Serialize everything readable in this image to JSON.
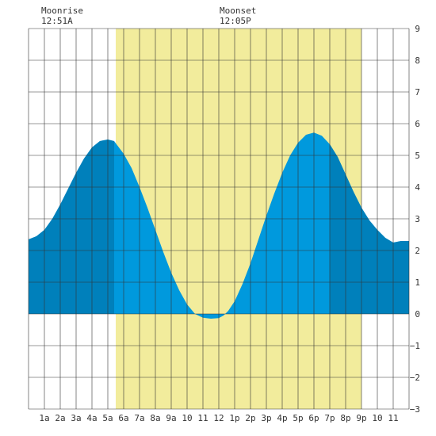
{
  "moon": {
    "rise_label": "Moonrise",
    "rise_time": "12:51A",
    "set_label": "Moonset",
    "set_time": "12:05P"
  },
  "chart_data": {
    "type": "area",
    "title": "",
    "xlabel": "",
    "ylabel": "",
    "x_range_hours": [
      0,
      24
    ],
    "ylim": [
      -3,
      9
    ],
    "y_ticks": [
      -3,
      -2,
      -1,
      0,
      1,
      2,
      3,
      4,
      5,
      6,
      7,
      8,
      9
    ],
    "x_tick_labels": [
      "1a",
      "2a",
      "3a",
      "4a",
      "5a",
      "6a",
      "7a",
      "8a",
      "9a",
      "10",
      "11",
      "12",
      "1p",
      "2p",
      "3p",
      "4p",
      "5p",
      "6p",
      "7p",
      "8p",
      "9p",
      "10",
      "11"
    ],
    "grid": true,
    "daylight_hours": [
      5.5,
      21.0
    ],
    "night_regions_hours": [
      [
        0,
        5.4
      ],
      [
        19.0,
        24
      ]
    ],
    "colors": {
      "daylight": "#f2ec9c",
      "tide_day": "#0099dd",
      "tide_night": "#0080bb",
      "grid": "#333333"
    },
    "series": [
      {
        "x": [
          0,
          0.5,
          1,
          1.5,
          2,
          2.5,
          3,
          3.5,
          4,
          4.5,
          5,
          5.4,
          6,
          6.5,
          7,
          7.5,
          8,
          8.5,
          9,
          9.5,
          10,
          10.5,
          11,
          11.5,
          12,
          12.3,
          12.6,
          13,
          13.5,
          14,
          14.5,
          15,
          15.5,
          16,
          16.5,
          17,
          17.5,
          18,
          18.5,
          19,
          19.5,
          20,
          20.5,
          21,
          21.5,
          22,
          22.5,
          23,
          23.5,
          24
        ],
        "y": [
          2.35,
          2.45,
          2.65,
          3.0,
          3.45,
          3.95,
          4.45,
          4.9,
          5.25,
          5.45,
          5.5,
          5.45,
          5.05,
          4.6,
          4.0,
          3.35,
          2.65,
          1.95,
          1.3,
          0.75,
          0.3,
          0.0,
          -0.12,
          -0.15,
          -0.13,
          -0.05,
          0.1,
          0.4,
          0.95,
          1.6,
          2.35,
          3.1,
          3.8,
          4.45,
          5.0,
          5.4,
          5.65,
          5.72,
          5.62,
          5.35,
          4.95,
          4.4,
          3.85,
          3.35,
          2.95,
          2.65,
          2.4,
          2.25,
          2.3,
          2.3
        ]
      }
    ]
  }
}
